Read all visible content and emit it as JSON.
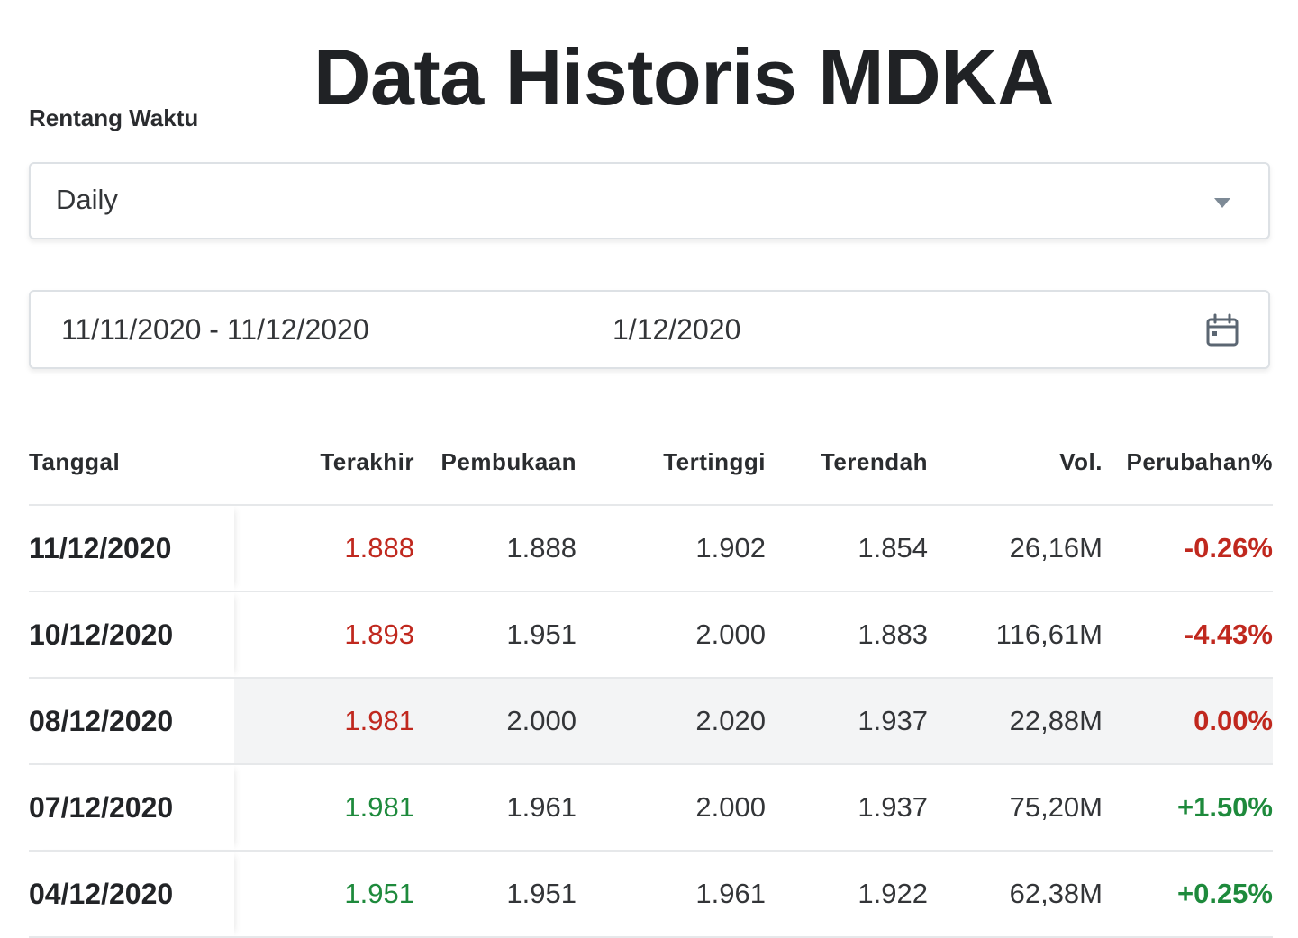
{
  "header": {
    "title": "Data Historis MDKA",
    "range_label": "Rentang Waktu"
  },
  "timeframe": {
    "selected": "Daily"
  },
  "date_picker": {
    "range": "11/11/2020 - 11/12/2020",
    "extra": "1/12/2020"
  },
  "table": {
    "columns": [
      "Tanggal",
      "Terakhir",
      "Pembukaan",
      "Tertinggi",
      "Terendah",
      "Vol.",
      "Perubahan%"
    ],
    "rows": [
      {
        "date": "11/12/2020",
        "last": "1.888",
        "open": "1.888",
        "high": "1.902",
        "low": "1.854",
        "vol": "26,16M",
        "change": "-0.26%",
        "last_color": "#c0281e",
        "change_color": "#c0281e"
      },
      {
        "date": "10/12/2020",
        "last": "1.893",
        "open": "1.951",
        "high": "2.000",
        "low": "1.883",
        "vol": "116,61M",
        "change": "-4.43%",
        "last_color": "#c0281e",
        "change_color": "#c0281e"
      },
      {
        "date": "08/12/2020",
        "last": "1.981",
        "open": "2.000",
        "high": "2.020",
        "low": "1.937",
        "vol": "22,88M",
        "change": "0.00%",
        "last_color": "#c0281e",
        "change_color": "#c0281e"
      },
      {
        "date": "07/12/2020",
        "last": "1.981",
        "open": "1.961",
        "high": "2.000",
        "low": "1.937",
        "vol": "75,20M",
        "change": "+1.50%",
        "last_color": "#1e8a3c",
        "change_color": "#1e8a3c"
      },
      {
        "date": "04/12/2020",
        "last": "1.951",
        "open": "1.951",
        "high": "1.961",
        "low": "1.922",
        "vol": "62,38M",
        "change": "+0.25%",
        "last_color": "#1e8a3c",
        "change_color": "#1e8a3c"
      }
    ]
  },
  "icons": {
    "dropdown": "chevron-down-icon",
    "calendar": "calendar-icon"
  }
}
